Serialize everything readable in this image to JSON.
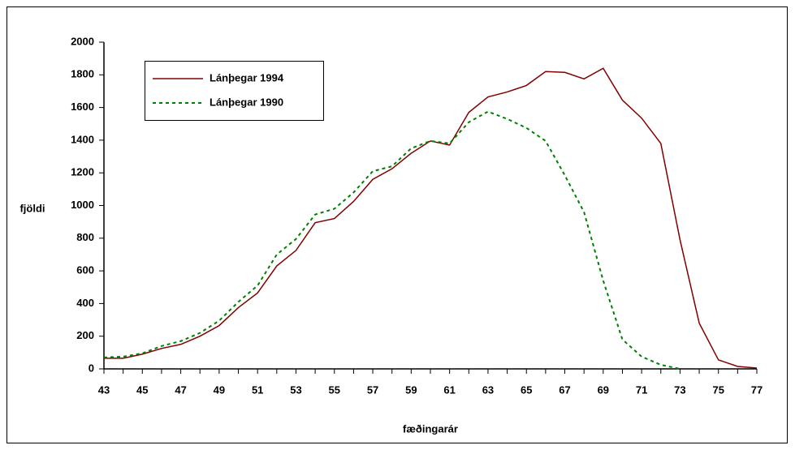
{
  "chart_data": {
    "type": "line",
    "xlabel": "fæðingarár",
    "ylabel": "fjöldi",
    "x": [
      43,
      44,
      45,
      46,
      47,
      48,
      49,
      50,
      51,
      52,
      53,
      54,
      55,
      56,
      57,
      58,
      59,
      60,
      61,
      62,
      63,
      64,
      65,
      66,
      67,
      68,
      69,
      70,
      71,
      72,
      73,
      74,
      75,
      76,
      77
    ],
    "series": [
      {
        "name": "Lánþegar 1994",
        "color": "#800000",
        "dash": "solid",
        "values": [
          65,
          65,
          90,
          125,
          150,
          200,
          265,
          375,
          465,
          630,
          725,
          895,
          920,
          1025,
          1160,
          1225,
          1320,
          1395,
          1370,
          1570,
          1665,
          1695,
          1735,
          1820,
          1815,
          1775,
          1840,
          1645,
          1535,
          1380,
          790,
          280,
          55,
          15,
          5
        ]
      },
      {
        "name": "Lánþegar 1990",
        "color": "#008000",
        "dash": "dotted",
        "values": [
          70,
          75,
          95,
          140,
          170,
          220,
          295,
          410,
          510,
          700,
          795,
          945,
          980,
          1080,
          1210,
          1240,
          1350,
          1395,
          1380,
          1510,
          1575,
          1530,
          1475,
          1395,
          1185,
          960,
          540,
          180,
          75,
          25,
          0,
          null,
          null,
          null,
          null
        ]
      }
    ],
    "xlim": [
      43,
      77
    ],
    "xticks": [
      43,
      45,
      47,
      49,
      51,
      53,
      55,
      57,
      59,
      61,
      63,
      65,
      67,
      69,
      71,
      73,
      75,
      77
    ],
    "ylim": [
      0,
      2000
    ],
    "yticks": [
      0,
      200,
      400,
      600,
      800,
      1000,
      1200,
      1400,
      1600,
      1800,
      2000
    ],
    "legend": "upper left"
  }
}
